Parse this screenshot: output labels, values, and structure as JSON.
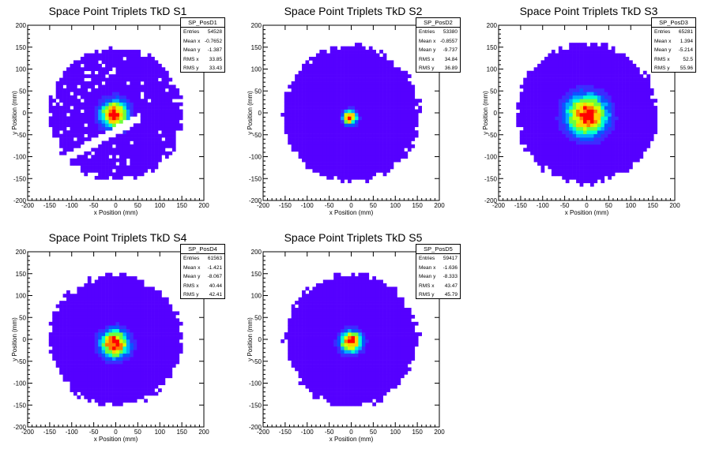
{
  "chart_data": [
    {
      "type": "heatmap",
      "title": "Space Point Triplets TkD S1",
      "xlabel": "x Position (mm)",
      "ylabel": "y Position (mm)",
      "xlim": [
        -200,
        200
      ],
      "ylim": [
        -200,
        200
      ],
      "xticks": [
        -200,
        -150,
        -100,
        -50,
        0,
        50,
        100,
        150,
        200
      ],
      "yticks": [
        -200,
        -150,
        -100,
        -50,
        0,
        50,
        100,
        150,
        200
      ],
      "stats": {
        "name": "SP_PosD1",
        "rows": [
          {
            "label": "Entries",
            "value": "54528"
          },
          {
            "label": "Mean x",
            "value": "-0.7652"
          },
          {
            "label": "Mean y",
            "value": "-1.387"
          },
          {
            "label": "RMS x",
            "value": "33.85"
          },
          {
            "label": "RMS y",
            "value": "33.43"
          }
        ]
      },
      "distribution": {
        "center_x": -3,
        "center_y": -3,
        "core_sigma": 22,
        "coverage_radius": 150,
        "gap_band": true
      }
    },
    {
      "type": "heatmap",
      "title": "Space Point Triplets TkD S2",
      "xlabel": "x Position (mm)",
      "ylabel": "y Position (mm)",
      "xlim": [
        -200,
        200
      ],
      "ylim": [
        -200,
        200
      ],
      "xticks": [
        -200,
        -150,
        -100,
        -50,
        0,
        50,
        100,
        150,
        200
      ],
      "yticks": [
        -200,
        -150,
        -100,
        -50,
        0,
        50,
        100,
        150,
        200
      ],
      "stats": {
        "name": "SP_PosD2",
        "rows": [
          {
            "label": "Entries",
            "value": "53380"
          },
          {
            "label": "Mean x",
            "value": "-0.8557"
          },
          {
            "label": "Mean y",
            "value": "-9.737"
          },
          {
            "label": "RMS x",
            "value": "34.84"
          },
          {
            "label": "RMS y",
            "value": "36.89"
          }
        ]
      },
      "distribution": {
        "center_x": -3,
        "center_y": -10,
        "core_sigma": 11,
        "coverage_radius": 155,
        "gap_band": false
      }
    },
    {
      "type": "heatmap",
      "title": "Space Point Triplets TkD S3",
      "xlabel": "x Position (mm)",
      "ylabel": "y Position (mm)",
      "xlim": [
        -200,
        200
      ],
      "ylim": [
        -200,
        200
      ],
      "xticks": [
        -200,
        -150,
        -100,
        -50,
        0,
        50,
        100,
        150,
        200
      ],
      "yticks": [
        -200,
        -150,
        -100,
        -50,
        0,
        50,
        100,
        150,
        200
      ],
      "stats": {
        "name": "SP_PosD3",
        "rows": [
          {
            "label": "Entries",
            "value": "65281"
          },
          {
            "label": "Mean x",
            "value": "1.394"
          },
          {
            "label": "Mean y",
            "value": "-5.214"
          },
          {
            "label": "RMS x",
            "value": "52.5"
          },
          {
            "label": "RMS y",
            "value": "55.96"
          }
        ]
      },
      "distribution": {
        "center_x": 0,
        "center_y": -5,
        "core_sigma": 32,
        "coverage_radius": 158,
        "gap_band": false
      }
    },
    {
      "type": "heatmap",
      "title": "Space Point Triplets TkD S4",
      "xlabel": "x Position (mm)",
      "ylabel": "y Position (mm)",
      "xlim": [
        -200,
        200
      ],
      "ylim": [
        -200,
        200
      ],
      "xticks": [
        -200,
        -150,
        -100,
        -50,
        0,
        50,
        100,
        150,
        200
      ],
      "yticks": [
        -200,
        -150,
        -100,
        -50,
        0,
        50,
        100,
        150,
        200
      ],
      "stats": {
        "name": "SP_PosD4",
        "rows": [
          {
            "label": "Entries",
            "value": "61563"
          },
          {
            "label": "Mean x",
            "value": "-1.421"
          },
          {
            "label": "Mean y",
            "value": "-8.067"
          },
          {
            "label": "RMS x",
            "value": "40.44"
          },
          {
            "label": "RMS y",
            "value": "42.41"
          }
        ]
      },
      "distribution": {
        "center_x": -2,
        "center_y": -10,
        "core_sigma": 22,
        "coverage_radius": 150,
        "gap_band": false
      }
    },
    {
      "type": "heatmap",
      "title": "Space Point Triplets TkD S5",
      "xlabel": "x Position (mm)",
      "ylabel": "y Position (mm)",
      "xlim": [
        -200,
        200
      ],
      "ylim": [
        -200,
        200
      ],
      "xticks": [
        -200,
        -150,
        -100,
        -50,
        0,
        50,
        100,
        150,
        200
      ],
      "yticks": [
        -200,
        -150,
        -100,
        -50,
        0,
        50,
        100,
        150,
        200
      ],
      "stats": {
        "name": "SP_PosD5",
        "rows": [
          {
            "label": "Entries",
            "value": "59417"
          },
          {
            "label": "Mean x",
            "value": "-1.636"
          },
          {
            "label": "Mean y",
            "value": "-8.333"
          },
          {
            "label": "RMS x",
            "value": "43.47"
          },
          {
            "label": "RMS y",
            "value": "45.79"
          }
        ]
      },
      "distribution": {
        "center_x": 0,
        "center_y": -5,
        "core_sigma": 17,
        "coverage_radius": 150,
        "gap_band": false
      }
    }
  ],
  "palette": [
    "#5500ff",
    "#3d2bff",
    "#0a55ff",
    "#00aaff",
    "#00ffd0",
    "#6dff3a",
    "#d4ff00",
    "#ffd000",
    "#ff7a00",
    "#ff0000"
  ]
}
